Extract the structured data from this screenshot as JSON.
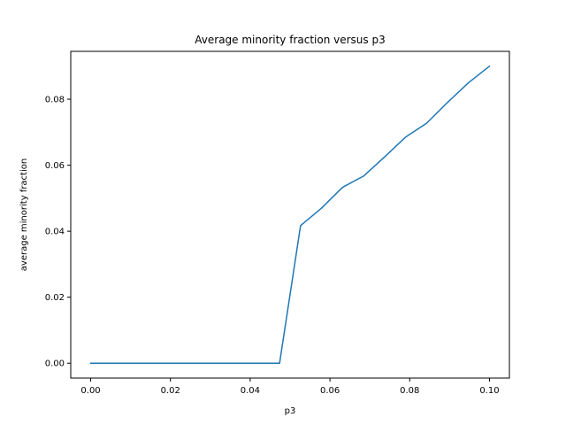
{
  "chart_data": {
    "type": "line",
    "title": "Average minority fraction versus p3",
    "xlabel": "p3",
    "ylabel": "average minority fraction",
    "xlim": [
      -0.005,
      0.105
    ],
    "ylim": [
      -0.0045,
      0.0945
    ],
    "xticks": [
      0.0,
      0.02,
      0.04,
      0.06,
      0.08,
      0.1
    ],
    "xtick_labels": [
      "0.00",
      "0.02",
      "0.04",
      "0.06",
      "0.08",
      "0.10"
    ],
    "yticks": [
      0.0,
      0.02,
      0.04,
      0.06,
      0.08
    ],
    "ytick_labels": [
      "0.00",
      "0.02",
      "0.04",
      "0.06",
      "0.08"
    ],
    "grid": false,
    "series": [
      {
        "color": "#1f77b4",
        "x": [
          0.0,
          0.00526,
          0.01053,
          0.01579,
          0.02105,
          0.02632,
          0.03158,
          0.03684,
          0.04211,
          0.04737,
          0.05263,
          0.05789,
          0.06316,
          0.06842,
          0.07368,
          0.07895,
          0.08421,
          0.08947,
          0.09474,
          0.1
        ],
        "values": [
          0.0,
          0.0,
          0.0,
          0.0,
          0.0,
          0.0,
          0.0,
          0.0,
          0.0,
          0.0,
          0.0417,
          0.047,
          0.0533,
          0.0567,
          0.0625,
          0.0685,
          0.0727,
          0.079,
          0.085,
          0.09
        ]
      }
    ]
  }
}
